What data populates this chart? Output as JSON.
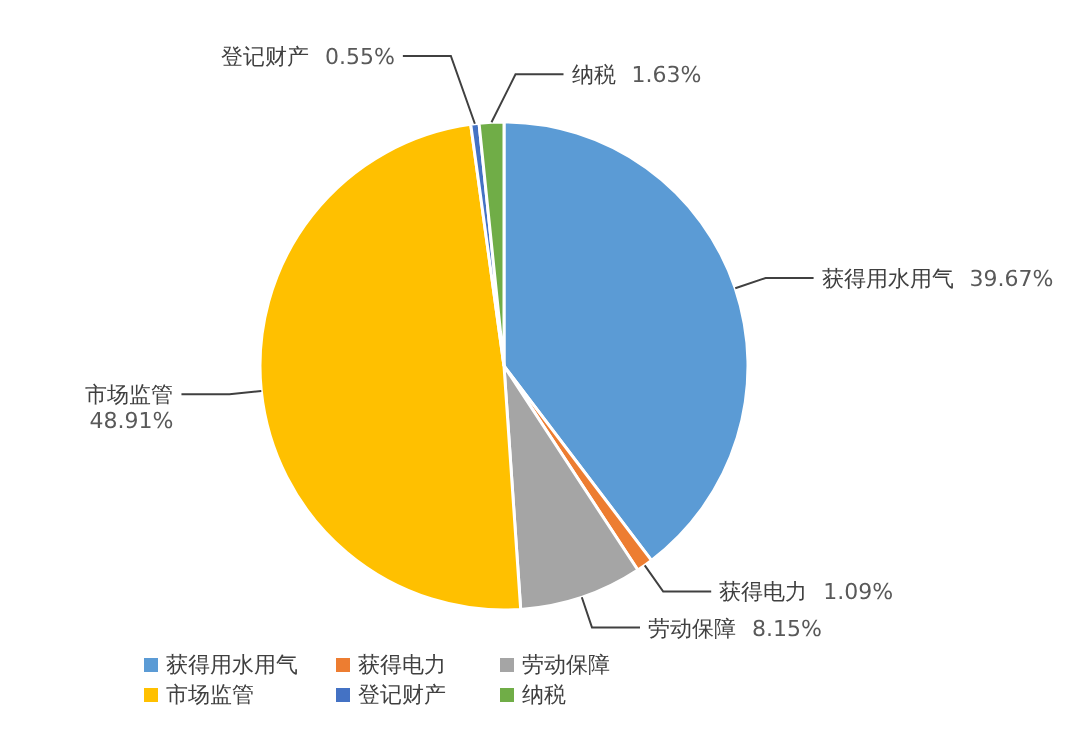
{
  "chart_data": {
    "type": "pie",
    "categories": [
      "获得用水用气",
      "获得电力",
      "劳动保障",
      "市场监管",
      "登记财产",
      "纳税"
    ],
    "values": [
      39.67,
      1.09,
      8.15,
      48.91,
      0.55,
      1.63
    ],
    "colors": [
      "#5b9bd5",
      "#ed7d31",
      "#a5a5a5",
      "#ffc000",
      "#4472c4",
      "#70ad47"
    ],
    "value_labels": [
      "39.67%",
      "1.09%",
      "8.15%",
      "48.91%",
      "0.55%",
      "1.63%"
    ],
    "legend": "bottom"
  }
}
